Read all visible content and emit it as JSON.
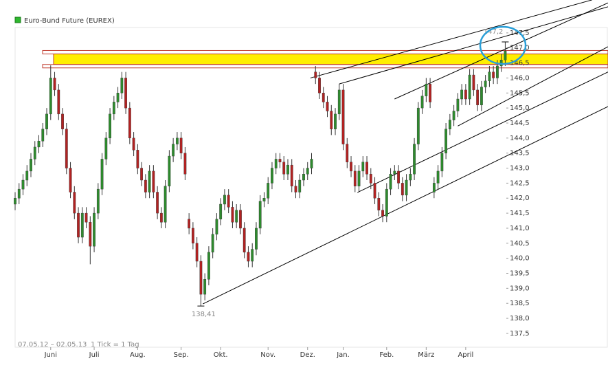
{
  "chart_data": {
    "type": "candlestick",
    "title": "Euro-Bund Future (EUREX)",
    "legend_color": "#2eb82e",
    "date_range": "07.05.12 – 02.05.13",
    "interval": "1 Tick = 1 Tag",
    "up_color": "#2e8b2e",
    "down_color": "#b22222",
    "xlim": [
      0,
      150
    ],
    "ylim": [
      137.04,
      147.68
    ],
    "xticks": [
      {
        "value": 9,
        "label": "Juni"
      },
      {
        "value": 20,
        "label": "Juli"
      },
      {
        "value": 31,
        "label": "Aug."
      },
      {
        "value": 42,
        "label": "Sep."
      },
      {
        "value": 52,
        "label": "Okt."
      },
      {
        "value": 64,
        "label": "Nov."
      },
      {
        "value": 74,
        "label": "Dez."
      },
      {
        "value": 83,
        "label": "Jan."
      },
      {
        "value": 94,
        "label": "Feb."
      },
      {
        "value": 104,
        "label": "März"
      },
      {
        "value": 114,
        "label": "April"
      }
    ],
    "yticks": [
      {
        "value": 137.5,
        "label": "137,5"
      },
      {
        "value": 138,
        "label": "138,0"
      },
      {
        "value": 138.5,
        "label": "138,5"
      },
      {
        "value": 139,
        "label": "139,0"
      },
      {
        "value": 139.5,
        "label": "139,5"
      },
      {
        "value": 140,
        "label": "140,0"
      },
      {
        "value": 140.5,
        "label": "140,5"
      },
      {
        "value": 141,
        "label": "141,0"
      },
      {
        "value": 141.5,
        "label": "141,5"
      },
      {
        "value": 142,
        "label": "142,0"
      },
      {
        "value": 142.5,
        "label": "142,5"
      },
      {
        "value": 143,
        "label": "143,0"
      },
      {
        "value": 143.5,
        "label": "143,5"
      },
      {
        "value": 144,
        "label": "144,0"
      },
      {
        "value": 144.5,
        "label": "144,5"
      },
      {
        "value": 145,
        "label": "145,0"
      },
      {
        "value": 145.5,
        "label": "145,5"
      },
      {
        "value": 146,
        "label": "146,0"
      },
      {
        "value": 146.5,
        "label": "146,5"
      },
      {
        "value": 147,
        "label": "147,0"
      },
      {
        "value": 147.5,
        "label": "147,5"
      }
    ],
    "open": [
      141.8,
      142.0,
      142.3,
      142.6,
      142.9,
      143.3,
      143.7,
      143.9,
      144.3,
      144.8,
      146.0,
      145.6,
      144.8,
      144.3,
      143.0,
      142.2,
      141.5,
      140.7,
      141.5,
      141.2,
      140.4,
      141.5,
      142.3,
      143.3,
      144.0,
      144.8,
      145.2,
      145.5,
      146.0,
      145.0,
      144.0,
      143.6,
      143.0,
      142.6,
      142.2,
      142.9,
      142.2,
      141.5,
      141.2,
      142.4,
      143.4,
      143.8,
      144.0,
      143.5,
      141.3,
      141.0,
      140.5,
      139.9,
      138.8,
      139.3,
      140.2,
      140.8,
      141.3,
      141.8,
      142.1,
      141.7,
      141.2,
      141.6,
      141.0,
      140.2,
      139.9,
      140.3,
      141.0,
      141.9,
      142.0,
      142.5,
      143.0,
      143.3,
      143.2,
      142.8,
      143.1,
      142.4,
      142.2,
      142.6,
      142.8,
      143.0,
      146.2,
      146.0,
      145.5,
      145.2,
      144.9,
      144.3,
      144.8,
      145.6,
      143.8,
      143.2,
      142.9,
      142.4,
      142.9,
      143.2,
      142.8,
      142.5,
      142.0,
      141.6,
      141.4,
      142.3,
      142.8,
      142.9,
      142.5,
      142.1,
      142.6,
      142.8,
      143.8,
      145.0,
      145.4,
      145.8,
      142.2,
      142.5,
      142.9,
      143.5,
      144.3,
      144.6,
      144.9,
      145.3,
      145.6,
      145.3,
      146.1,
      145.6,
      145.1,
      145.7,
      145.9,
      146.2,
      146.0,
      146.4,
      146.6
    ],
    "high": [
      142.2,
      142.5,
      142.8,
      143.1,
      143.5,
      143.9,
      144.1,
      144.5,
      145.0,
      146.42,
      146.2,
      145.8,
      145.0,
      144.5,
      143.2,
      142.4,
      141.7,
      141.7,
      141.7,
      141.4,
      141.7,
      142.5,
      143.5,
      144.2,
      145.0,
      145.4,
      145.7,
      146.2,
      146.2,
      145.2,
      144.2,
      143.8,
      143.2,
      142.8,
      143.1,
      143.1,
      142.4,
      141.7,
      142.6,
      143.6,
      144.0,
      144.2,
      144.2,
      143.7,
      141.5,
      141.2,
      140.7,
      140.1,
      139.5,
      140.4,
      141.0,
      141.5,
      142.0,
      142.3,
      142.3,
      141.9,
      141.8,
      141.8,
      141.2,
      140.4,
      140.5,
      141.2,
      142.1,
      142.2,
      142.7,
      143.2,
      143.5,
      143.5,
      143.4,
      143.3,
      143.3,
      142.6,
      142.8,
      143.0,
      143.2,
      143.5,
      146.4,
      146.2,
      145.7,
      145.4,
      145.1,
      145.0,
      145.8,
      145.8,
      144.0,
      143.4,
      143.1,
      143.1,
      143.4,
      143.4,
      143.0,
      142.7,
      142.2,
      141.8,
      142.5,
      143.0,
      143.1,
      143.1,
      142.7,
      142.8,
      143.0,
      144.0,
      145.2,
      145.6,
      146.0,
      146.0,
      142.7,
      143.1,
      143.7,
      144.5,
      144.8,
      145.1,
      145.5,
      145.8,
      145.8,
      146.3,
      146.3,
      145.8,
      145.9,
      146.1,
      146.4,
      146.4,
      146.6,
      146.8,
      147.2
    ],
    "low": [
      141.6,
      141.8,
      142.1,
      142.4,
      142.7,
      143.1,
      143.5,
      143.7,
      144.1,
      144.6,
      145.4,
      144.6,
      144.1,
      142.8,
      142.0,
      141.3,
      140.5,
      140.5,
      141.0,
      139.8,
      140.2,
      141.3,
      142.1,
      143.1,
      143.8,
      144.6,
      145.0,
      145.3,
      144.8,
      143.8,
      143.4,
      142.8,
      142.4,
      142.0,
      142.0,
      142.0,
      141.3,
      141.0,
      141.0,
      142.2,
      143.2,
      143.6,
      143.3,
      142.6,
      140.8,
      140.3,
      139.7,
      138.41,
      138.6,
      139.1,
      140.0,
      140.6,
      141.1,
      141.6,
      141.5,
      141.0,
      141.0,
      140.8,
      140.0,
      139.7,
      139.7,
      140.1,
      140.8,
      141.7,
      141.8,
      142.3,
      142.8,
      143.0,
      142.6,
      142.6,
      142.2,
      142.0,
      142.0,
      142.4,
      142.6,
      142.8,
      145.8,
      145.3,
      145.0,
      144.7,
      144.1,
      144.1,
      144.6,
      143.6,
      143.0,
      142.7,
      142.2,
      142.2,
      142.7,
      142.6,
      142.3,
      141.8,
      141.4,
      141.2,
      141.2,
      142.1,
      142.6,
      142.3,
      141.9,
      141.9,
      142.4,
      142.6,
      143.6,
      144.8,
      145.2,
      145.0,
      142.0,
      142.3,
      142.7,
      143.3,
      144.1,
      144.4,
      144.7,
      145.1,
      145.1,
      145.1,
      145.4,
      144.9,
      144.9,
      145.5,
      145.7,
      145.8,
      145.8,
      146.2,
      146.4
    ],
    "close": [
      142.0,
      142.3,
      142.6,
      142.9,
      143.3,
      143.7,
      143.9,
      144.3,
      144.8,
      146.0,
      145.6,
      144.8,
      144.3,
      143.0,
      142.2,
      141.5,
      140.7,
      141.5,
      141.2,
      140.4,
      141.5,
      142.3,
      143.3,
      144.0,
      144.8,
      145.2,
      145.5,
      146.0,
      145.0,
      144.0,
      143.6,
      143.0,
      142.6,
      142.2,
      142.9,
      142.2,
      141.5,
      141.2,
      142.4,
      143.4,
      143.8,
      144.0,
      143.5,
      142.8,
      141.0,
      140.5,
      139.9,
      138.8,
      139.3,
      140.2,
      140.8,
      141.3,
      141.8,
      142.1,
      141.7,
      141.2,
      141.6,
      141.0,
      140.2,
      139.9,
      140.3,
      141.0,
      141.9,
      142.0,
      142.5,
      143.0,
      143.3,
      143.2,
      142.8,
      143.1,
      142.4,
      142.2,
      142.6,
      142.8,
      143.0,
      143.3,
      146.0,
      145.5,
      145.2,
      144.9,
      144.3,
      144.8,
      145.6,
      143.8,
      143.2,
      142.9,
      142.4,
      142.9,
      143.2,
      142.8,
      142.5,
      142.0,
      141.6,
      141.4,
      142.3,
      142.8,
      142.9,
      142.5,
      142.1,
      142.6,
      142.8,
      143.8,
      145.0,
      145.4,
      145.8,
      145.2,
      142.5,
      142.9,
      143.5,
      144.3,
      144.6,
      144.9,
      145.3,
      145.6,
      145.3,
      146.1,
      145.6,
      145.1,
      145.7,
      145.9,
      146.2,
      146.0,
      146.4,
      146.6,
      146.9
    ],
    "annotations": [
      {
        "text": "138,41",
        "x": 47,
        "y": 138.41
      },
      {
        "text": "147,2",
        "x": 124,
        "y": 147.2
      }
    ],
    "resistance_zone": [
      146.45,
      146.8
    ],
    "zone_color": "#ffee00",
    "trendlines": [
      {
        "x": [
          47.5,
          150
        ],
        "y": [
          138.48,
          145.05
        ]
      },
      {
        "x": [
          86.6,
          150
        ],
        "y": [
          142.19,
          146.2
        ]
      },
      {
        "x": [
          112,
          150
        ],
        "y": [
          144.4,
          147.04
        ]
      },
      {
        "x": [
          74.7,
          146
        ],
        "y": [
          146.0,
          148.6
        ]
      },
      {
        "x": [
          82,
          150
        ],
        "y": [
          145.8,
          148.37
        ]
      },
      {
        "x": [
          96,
          150
        ],
        "y": [
          145.3,
          148.5
        ]
      }
    ]
  }
}
